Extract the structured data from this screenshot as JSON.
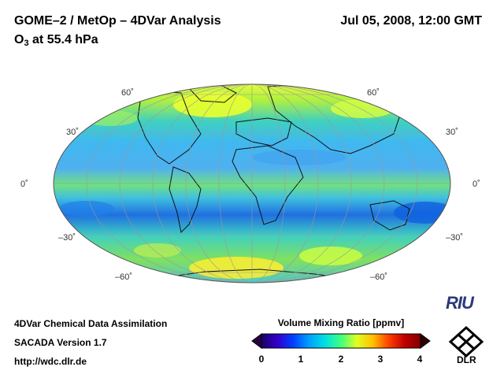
{
  "header": {
    "title": "GOME–2 / MetOp – 4DVar Analysis",
    "date": "Jul 05, 2008, 12:00 GMT",
    "subtitle_prefix": "O",
    "subtitle_sub": "3",
    "subtitle_suffix": " at 55.4 hPa"
  },
  "map": {
    "projection": "Mollweide",
    "lat_labels": [
      "60˚",
      "30˚",
      "0˚",
      "–30˚",
      "–60˚"
    ]
  },
  "footer": {
    "line1": "4DVar Chemical Data Assimilation",
    "line2": "SACADA Version 1.7",
    "line3": "http://wdc.dlr.de"
  },
  "colorbar": {
    "title": "Volume Mixing Ratio [ppmv]",
    "ticks": [
      "0",
      "1",
      "2",
      "3",
      "4"
    ],
    "range": [
      0,
      4
    ],
    "colors": [
      "#1a0066",
      "#3300cc",
      "#0040ff",
      "#00a0ff",
      "#00e0e0",
      "#40ff80",
      "#e0ff20",
      "#ffc000",
      "#ff4000",
      "#c00000",
      "#800000"
    ]
  },
  "logos": {
    "riu": "RIU",
    "dlr": "DLR"
  }
}
